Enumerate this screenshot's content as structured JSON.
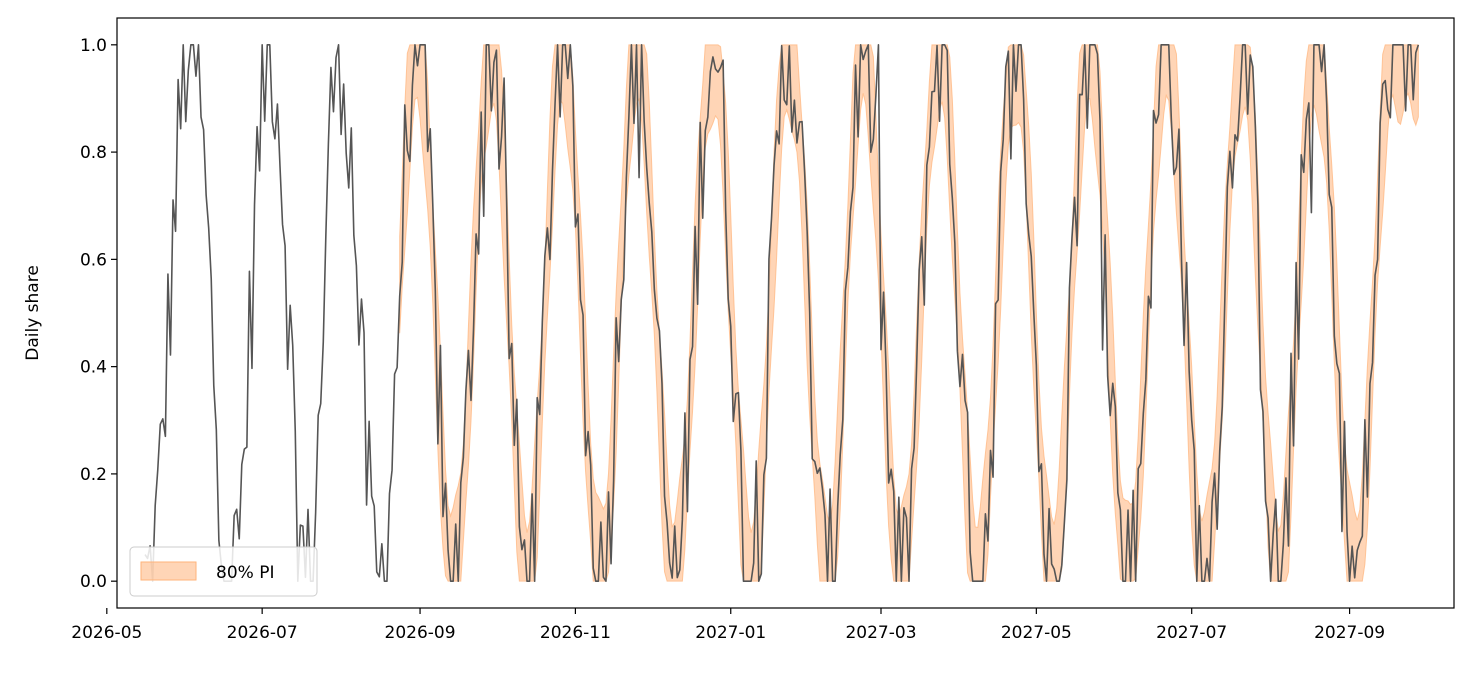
{
  "chart_data": {
    "type": "line",
    "title": "",
    "xlabel": "",
    "ylabel": "Daily share",
    "x_start": "2026-05-16",
    "x_end": "2027-09-28",
    "forecast_start": "2026-08-24",
    "xlim": [
      "2026-05-05",
      "2027-10-12"
    ],
    "ylim": [
      -0.05,
      1.05
    ],
    "x_ticks": [
      "2026-05",
      "2026-07",
      "2026-09",
      "2026-11",
      "2027-01",
      "2027-03",
      "2027-05",
      "2027-07",
      "2027-09"
    ],
    "y_ticks": [
      "0.0",
      "0.2",
      "0.4",
      "0.6",
      "0.8",
      "1.0"
    ],
    "series": [
      {
        "kind": "line",
        "color": "#555555",
        "cycle_peaks": [
          "2026-06-03",
          "2026-07-04",
          "2026-07-31",
          "2026-08-31",
          "2026-09-29",
          "2026-10-27",
          "2026-11-25",
          "2026-12-25",
          "2027-01-24",
          "2027-02-22",
          "2027-03-24",
          "2027-04-23",
          "2027-05-22",
          "2027-06-21",
          "2027-07-21",
          "2027-08-19",
          "2027-09-18"
        ],
        "cycle_troughs": [
          "2026-05-17",
          "2026-06-19",
          "2026-07-19",
          "2026-08-16",
          "2026-09-14",
          "2026-10-13",
          "2026-11-11",
          "2026-12-10",
          "2027-01-09",
          "2027-02-08",
          "2027-03-09",
          "2027-04-08",
          "2027-05-07",
          "2027-06-06",
          "2027-07-06",
          "2027-08-04",
          "2027-09-03"
        ],
        "y_max": 1.0,
        "y_min": 0.0
      },
      {
        "name": "80% PI",
        "kind": "band",
        "color": "#ffb37a",
        "y_max": 1.0,
        "y_min": 0.0
      }
    ],
    "legend": {
      "position": "lower-left",
      "entries": [
        "80% PI"
      ]
    },
    "grid": false
  }
}
